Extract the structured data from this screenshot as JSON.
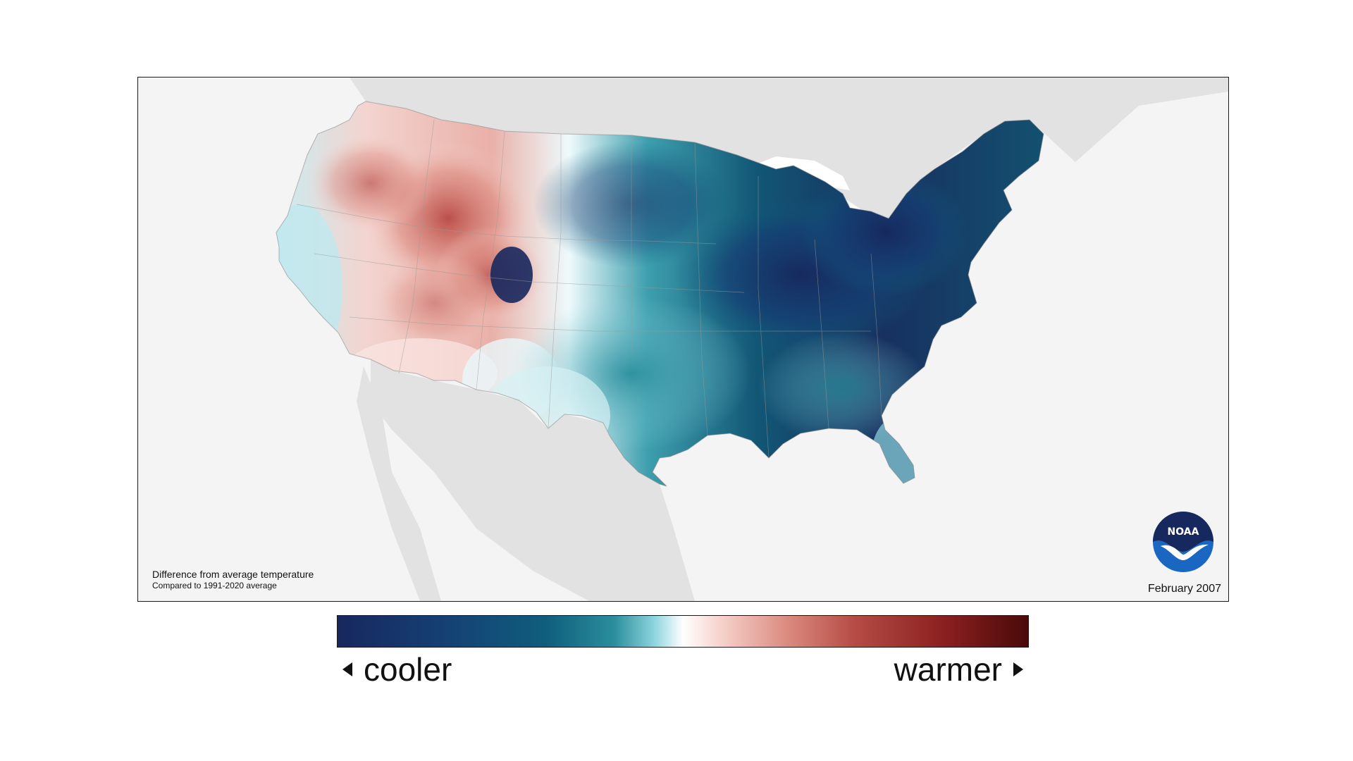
{
  "map": {
    "caption_title": "Difference from average temperature",
    "caption_subtitle": "Compared to 1991-2020 average",
    "date": "February 2007",
    "logo_text": "NOAA"
  },
  "legend": {
    "left_label": "cooler",
    "right_label": "warmer",
    "colors": [
      "#17285e",
      "#153f74",
      "#0f5d7c",
      "#2a8e9c",
      "#8fd6df",
      "#ffffff",
      "#f7d6d0",
      "#dc8b80",
      "#b54b44",
      "#8a1f1f",
      "#4a0a0a"
    ]
  },
  "colors": {
    "land_background": "#e2e2e2",
    "ocean_background": "#f4f4f4",
    "cold_strong": "#17285e",
    "warm_strong": "#8a1f1f"
  }
}
